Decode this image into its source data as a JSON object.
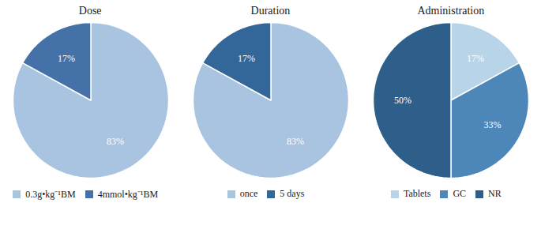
{
  "chart_data": [
    {
      "type": "pie",
      "title": "Dose",
      "categories": [
        "0.3g•kg⁻¹BM",
        "4mmol•kg⁻¹BM"
      ],
      "values": [
        83,
        17
      ],
      "value_labels": [
        "83%",
        "17%"
      ],
      "colors": [
        "#a8c4e0",
        "#4472a8"
      ],
      "data_labels": true,
      "legend": "bottom"
    },
    {
      "type": "pie",
      "title": "Duration",
      "categories": [
        "once",
        "5 days"
      ],
      "values": [
        83,
        17
      ],
      "value_labels": [
        "83%",
        "17%"
      ],
      "colors": [
        "#a8c4e0",
        "#336699"
      ],
      "data_labels": true,
      "legend": "bottom"
    },
    {
      "type": "pie",
      "title": "Administration",
      "categories": [
        "Tablets",
        "GC",
        "NR"
      ],
      "values": [
        17,
        33,
        50
      ],
      "value_labels": [
        "17%",
        "33%",
        "50%"
      ],
      "colors": [
        "#b8d4e8",
        "#4d86b8",
        "#2e5f8a"
      ],
      "data_labels": true,
      "legend": "bottom"
    }
  ]
}
